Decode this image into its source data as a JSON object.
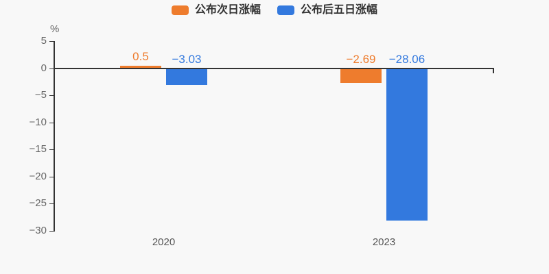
{
  "chart_data": {
    "type": "bar",
    "title": "",
    "unit_label": "%",
    "categories": [
      "2020",
      "2023"
    ],
    "series": [
      {
        "name": "公布次日涨幅",
        "color": "#ee7c2d",
        "values": [
          0.5,
          -2.69
        ],
        "value_labels": [
          "0.5",
          "−2.69"
        ]
      },
      {
        "name": "公布后五日涨幅",
        "color": "#3379de",
        "values": [
          -3.03,
          -28.06
        ],
        "value_labels": [
          "−3.03",
          "−28.06"
        ]
      }
    ],
    "ylim": [
      -30,
      5
    ],
    "yticks": [
      5,
      0,
      -5,
      -10,
      -15,
      -20,
      -25,
      -30
    ],
    "ytick_labels": [
      "5",
      "0",
      "−5",
      "−10",
      "−15",
      "−20",
      "−25",
      "−30"
    ],
    "grid": false,
    "legend_position": "top"
  },
  "colors": {
    "background": "#f8f8f8",
    "axis_line": "#333333",
    "tick_label": "#666666",
    "category_label": "#555555",
    "legend_text": "#333333"
  }
}
